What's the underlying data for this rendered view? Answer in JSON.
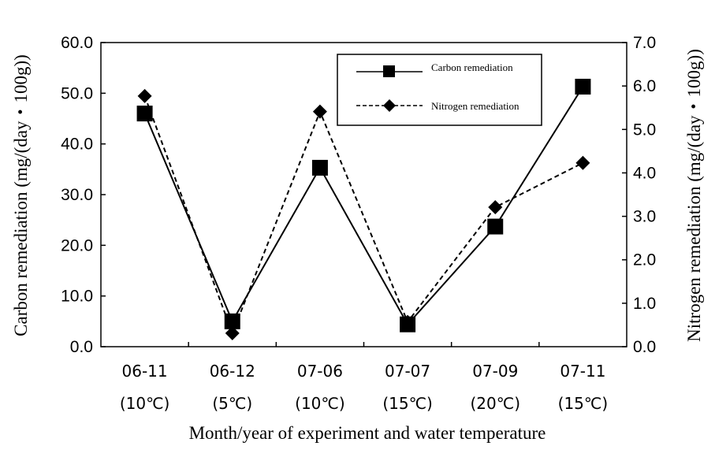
{
  "chart_data": {
    "type": "line",
    "categories": [
      "06-11",
      "06-12",
      "07-06",
      "07-07",
      "07-09",
      "07-11"
    ],
    "category_sublabels": [
      "(10℃)",
      "(5℃)",
      "(10℃)",
      "(15℃)",
      "(20℃)",
      "(15℃)"
    ],
    "xlabel": "Month/year of experiment and water temperature",
    "ylabel_left": "Carbon remediation (mg/(day・100g))",
    "ylabel_right": "Nitrogen remediation (mg/(day・100g))",
    "ylim_left": [
      0,
      60
    ],
    "ylim_right": [
      0,
      7
    ],
    "yticks_left": [
      "0.0",
      "10.0",
      "20.0",
      "30.0",
      "40.0",
      "50.0",
      "60.0"
    ],
    "yticks_right": [
      "0.0",
      "1.0",
      "2.0",
      "3.0",
      "4.0",
      "5.0",
      "6.0",
      "7.0"
    ],
    "grid": false,
    "legend_position": "top-right",
    "series": [
      {
        "name": "Carbon remediation",
        "axis": "left",
        "marker": "square",
        "line_style": "solid",
        "values": [
          46.0,
          5.0,
          35.3,
          4.4,
          23.7,
          51.3
        ]
      },
      {
        "name": "Nitrogen remediation",
        "axis": "right",
        "marker": "diamond",
        "line_style": "dashed",
        "values": [
          5.77,
          0.31,
          5.41,
          0.57,
          3.21,
          4.23
        ]
      }
    ]
  }
}
